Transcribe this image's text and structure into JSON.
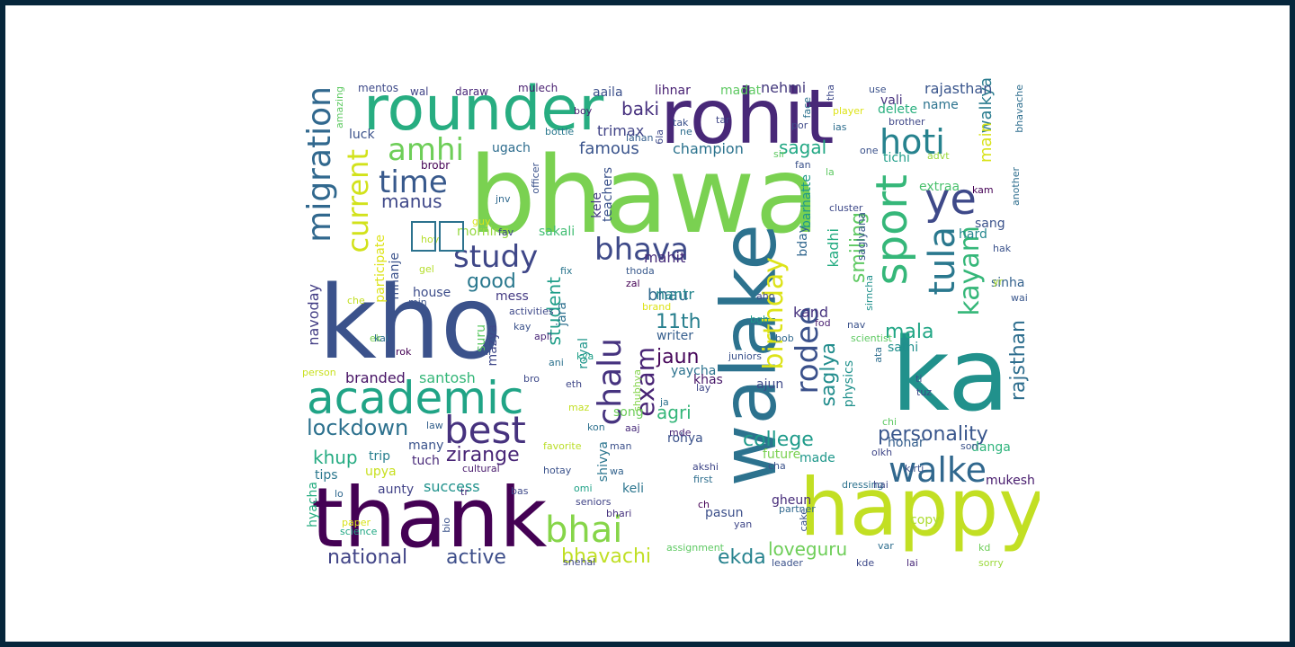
{
  "words": [
    {
      "text": "bhawa",
      "color": "#7ad151"
    },
    {
      "text": "kho",
      "color": "#3b528b"
    },
    {
      "text": "ka",
      "color": "#21918c"
    },
    {
      "text": "thank",
      "color": "#440154"
    },
    {
      "text": "happy",
      "color": "#c2df23"
    },
    {
      "text": "walake",
      "color": "#2c728e"
    },
    {
      "text": "rohit",
      "color": "#482878"
    },
    {
      "text": "rounder",
      "color": "#27ad81"
    },
    {
      "text": "academic",
      "color": "#20a486"
    },
    {
      "text": "migration",
      "color": "#31688e"
    },
    {
      "text": "sport",
      "color": "#35b779"
    },
    {
      "text": "ye",
      "color": "#3e4989"
    },
    {
      "text": "best",
      "color": "#46327e"
    },
    {
      "text": "bhai",
      "color": "#86d549"
    },
    {
      "text": "walke",
      "color": "#31688e"
    },
    {
      "text": "tula",
      "color": "#2a788e"
    },
    {
      "text": "hoti",
      "color": "#26828e"
    },
    {
      "text": "amhi",
      "color": "#6ece58"
    },
    {
      "text": "time",
      "color": "#38598c"
    },
    {
      "text": "current",
      "color": "#d2e21b"
    },
    {
      "text": "study",
      "color": "#3f4788"
    },
    {
      "text": "bhava",
      "color": "#3e4a89"
    },
    {
      "text": "chalu",
      "color": "#46337f"
    },
    {
      "text": "exam",
      "color": "#482475"
    },
    {
      "text": "birthday",
      "color": "#dde318"
    },
    {
      "text": "rodee",
      "color": "#3b518b"
    },
    {
      "text": "kayam",
      "color": "#35b779"
    },
    {
      "text": "personality",
      "color": "#39568c"
    },
    {
      "text": "lockdown",
      "color": "#2d718e"
    },
    {
      "text": "college",
      "color": "#1e9b8a"
    },
    {
      "text": "zirange",
      "color": "#482576"
    },
    {
      "text": "national",
      "color": "#414487"
    },
    {
      "text": "active",
      "color": "#3d4e8a"
    },
    {
      "text": "bhavachi",
      "color": "#c0df25"
    },
    {
      "text": "ekda",
      "color": "#26828e"
    },
    {
      "text": "loveguru",
      "color": "#6ece58"
    },
    {
      "text": "rajsthan",
      "color": "#2e6e8e"
    },
    {
      "text": "mala",
      "color": "#21a685"
    },
    {
      "text": "saglya",
      "color": "#228d8d"
    },
    {
      "text": "smiling",
      "color": "#5ec962"
    },
    {
      "text": "manus",
      "color": "#3f4889"
    },
    {
      "text": "good",
      "color": "#2a788e"
    },
    {
      "text": "student",
      "color": "#1f9e89"
    },
    {
      "text": "11th",
      "color": "#277f8e"
    },
    {
      "text": "jaun",
      "color": "#450559"
    },
    {
      "text": "agri",
      "color": "#34b679"
    },
    {
      "text": "khup",
      "color": "#25ab82"
    },
    {
      "text": "famous",
      "color": "#3a548c"
    },
    {
      "text": "champion",
      "color": "#2c738e"
    },
    {
      "text": "sagal",
      "color": "#22a884"
    },
    {
      "text": "baki",
      "color": "#46307e"
    },
    {
      "text": "trimax",
      "color": "#414487"
    },
    {
      "text": "walkya",
      "color": "#297b8e"
    },
    {
      "text": "main",
      "color": "#d8e219"
    },
    {
      "text": "bhau",
      "color": "#30698e"
    },
    {
      "text": "mahit",
      "color": "#472d7b"
    },
    {
      "text": "nantr",
      "color": "#24868e"
    },
    {
      "text": "aaila",
      "color": "#3c508b"
    },
    {
      "text": "lihnar",
      "color": "#482173"
    },
    {
      "text": "madat",
      "color": "#5ec962"
    },
    {
      "text": "nehmi",
      "color": "#44397d"
    },
    {
      "text": "rajasthan",
      "color": "#39558c"
    },
    {
      "text": "name",
      "color": "#2c738e"
    },
    {
      "text": "vali",
      "color": "#46317e"
    },
    {
      "text": "delete",
      "color": "#29af7f"
    },
    {
      "text": "tichi",
      "color": "#1f9e89"
    },
    {
      "text": "extraa",
      "color": "#4ac16d"
    },
    {
      "text": "sang",
      "color": "#3b528b"
    },
    {
      "text": "hard",
      "color": "#24878e"
    },
    {
      "text": "sinha",
      "color": "#34618d"
    },
    {
      "text": "sathi",
      "color": "#218f8d"
    },
    {
      "text": "honar",
      "color": "#355f8d"
    },
    {
      "text": "danga",
      "color": "#2fb47c"
    },
    {
      "text": "mukesh",
      "color": "#481c6e"
    },
    {
      "text": "copy",
      "color": "#addc30"
    },
    {
      "text": "future",
      "color": "#7ad151"
    },
    {
      "text": "made",
      "color": "#1f988b"
    },
    {
      "text": "gheun",
      "color": "#472c7a"
    },
    {
      "text": "pasun",
      "color": "#3c4f8a"
    },
    {
      "text": "keli",
      "color": "#2b758e"
    },
    {
      "text": "success",
      "color": "#20928c"
    },
    {
      "text": "aunty",
      "color": "#414287"
    },
    {
      "text": "tuch",
      "color": "#482979"
    },
    {
      "text": "trip",
      "color": "#277e8e"
    },
    {
      "text": "upya",
      "color": "#c8e020"
    },
    {
      "text": "tips",
      "color": "#2a778e"
    },
    {
      "text": "many",
      "color": "#3a538b"
    },
    {
      "text": "branded",
      "color": "#471365"
    },
    {
      "text": "santosh",
      "color": "#35b779"
    },
    {
      "text": "navoday",
      "color": "#433e85"
    },
    {
      "text": "house",
      "color": "#3d4d8a"
    },
    {
      "text": "mess",
      "color": "#443a83"
    },
    {
      "text": "morning",
      "color": "#95d840"
    },
    {
      "text": "ugach",
      "color": "#2e6d8e"
    },
    {
      "text": "sakali",
      "color": "#40bd72"
    },
    {
      "text": "luck",
      "color": "#3b528b"
    },
    {
      "text": "brobr",
      "color": "#440154"
    },
    {
      "text": "writer",
      "color": "#355e8d"
    },
    {
      "text": "yaycha",
      "color": "#2c728e"
    },
    {
      "text": "khas",
      "color": "#481769"
    },
    {
      "text": "ajun",
      "color": "#3e4989"
    },
    {
      "text": "rohya",
      "color": "#3b528b"
    },
    {
      "text": "song",
      "color": "#6ccd5a"
    },
    {
      "text": "bday",
      "color": "#31678e"
    },
    {
      "text": "barhatte",
      "color": "#1f9a8a"
    },
    {
      "text": "kadhi",
      "color": "#25ac82"
    },
    {
      "text": "kand",
      "color": "#46327e"
    },
    {
      "text": "physics",
      "color": "#21918c"
    },
    {
      "text": "saglyana",
      "color": "#39568c"
    },
    {
      "text": "hyacha",
      "color": "#26ad81"
    },
    {
      "text": "mhanje",
      "color": "#3b528b"
    },
    {
      "text": "participate",
      "color": "#dde318"
    },
    {
      "text": "royal",
      "color": "#1f958b"
    },
    {
      "text": "jara",
      "color": "#2d708e"
    },
    {
      "text": "mazya",
      "color": "#3f4889"
    },
    {
      "text": "suru",
      "color": "#5cc863"
    },
    {
      "text": "shivya",
      "color": "#2b758e"
    },
    {
      "text": "kele",
      "color": "#443b84"
    },
    {
      "text": "teachers",
      "color": "#3b528b"
    },
    {
      "text": "mentos",
      "color": "#3e4a89"
    },
    {
      "text": "wal",
      "color": "#414487"
    },
    {
      "text": "daraw",
      "color": "#482677"
    },
    {
      "text": "mulech",
      "color": "#481f70"
    },
    {
      "text": "amazing",
      "color": "#5ec962"
    },
    {
      "text": "boy",
      "color": "#481f70"
    },
    {
      "text": "lahan",
      "color": "#355f8d"
    },
    {
      "text": "bottle",
      "color": "#2a788e"
    },
    {
      "text": "officer",
      "color": "#3b528b"
    },
    {
      "text": "jnv",
      "color": "#30698e"
    },
    {
      "text": "guy",
      "color": "#d5e21a"
    },
    {
      "text": "fav",
      "color": "#3f4788"
    },
    {
      "text": "fix",
      "color": "#2a768e"
    },
    {
      "text": "thoda",
      "color": "#38598c"
    },
    {
      "text": "zal",
      "color": "#440154"
    },
    {
      "text": "brand",
      "color": "#dde318"
    },
    {
      "text": "apli",
      "color": "#482576"
    },
    {
      "text": "ani",
      "color": "#2c728e"
    },
    {
      "text": "kya",
      "color": "#1fa088"
    },
    {
      "text": "shubhya",
      "color": "#84d44b"
    },
    {
      "text": "eth",
      "color": "#3f4788"
    },
    {
      "text": "maz",
      "color": "#c2df23"
    },
    {
      "text": "law",
      "color": "#34618d"
    },
    {
      "text": "kon",
      "color": "#2d708e"
    },
    {
      "text": "aaj",
      "color": "#472a7a"
    },
    {
      "text": "man",
      "color": "#3c508b"
    },
    {
      "text": "wa",
      "color": "#33638d"
    },
    {
      "text": "omi",
      "color": "#1fa287"
    },
    {
      "text": "seniors",
      "color": "#414487"
    },
    {
      "text": "bhari",
      "color": "#46327e"
    },
    {
      "text": "favorite",
      "color": "#bade28"
    },
    {
      "text": "hotay",
      "color": "#3b528b"
    },
    {
      "text": "cultural",
      "color": "#481a6c"
    },
    {
      "text": "bas",
      "color": "#3e4989"
    },
    {
      "text": "tr",
      "color": "#482979"
    },
    {
      "text": "bio",
      "color": "#3b528b"
    },
    {
      "text": "lo",
      "color": "#31688e"
    },
    {
      "text": "paper",
      "color": "#d8e219"
    },
    {
      "text": "science",
      "color": "#22a884"
    },
    {
      "text": "snehal",
      "color": "#3f4788"
    },
    {
      "text": "assignment",
      "color": "#5ec962"
    },
    {
      "text": "leader",
      "color": "#3b528b"
    },
    {
      "text": "kde",
      "color": "#3e4989"
    },
    {
      "text": "lai",
      "color": "#482878"
    },
    {
      "text": "sorry",
      "color": "#9bd93c"
    },
    {
      "text": "kd",
      "color": "#6ece58"
    },
    {
      "text": "var",
      "color": "#2e6e8e"
    },
    {
      "text": "yan",
      "color": "#3f4788"
    },
    {
      "text": "ch",
      "color": "#440154"
    },
    {
      "text": "cake",
      "color": "#3b528b"
    },
    {
      "text": "partner",
      "color": "#31688e"
    },
    {
      "text": "first",
      "color": "#2e6e8e"
    },
    {
      "text": "akshi",
      "color": "#3f4788"
    },
    {
      "text": "cha",
      "color": "#3b528b"
    },
    {
      "text": "mde",
      "color": "#482575"
    },
    {
      "text": "ja",
      "color": "#2c728e"
    },
    {
      "text": "lay",
      "color": "#3f4788"
    },
    {
      "text": "juniors",
      "color": "#3b528b"
    },
    {
      "text": "bob",
      "color": "#31688e"
    },
    {
      "text": "bgh",
      "color": "#1f988b"
    },
    {
      "text": "aho",
      "color": "#3e4989"
    },
    {
      "text": "fod",
      "color": "#481f70"
    },
    {
      "text": "nav",
      "color": "#3b528b"
    },
    {
      "text": "scientist",
      "color": "#5ec962"
    },
    {
      "text": "sirncha",
      "color": "#21918c"
    },
    {
      "text": "ata",
      "color": "#2e6e8e"
    },
    {
      "text": "ti",
      "color": "#3b528b"
    },
    {
      "text": "tuz",
      "color": "#3e4989"
    },
    {
      "text": "chi",
      "color": "#5ec962"
    },
    {
      "text": "olkh",
      "color": "#3f4788"
    },
    {
      "text": "kirti",
      "color": "#3b528b"
    },
    {
      "text": "dressing",
      "color": "#2c728e"
    },
    {
      "text": "hai",
      "color": "#3e4989"
    },
    {
      "text": "son",
      "color": "#3b528b"
    },
    {
      "text": "wai",
      "color": "#39568c"
    },
    {
      "text": "yr",
      "color": "#addc30"
    },
    {
      "text": "hak",
      "color": "#3b528b"
    },
    {
      "text": "kam",
      "color": "#440154"
    },
    {
      "text": "cluster",
      "color": "#3e4989"
    },
    {
      "text": "la",
      "color": "#5ec962"
    },
    {
      "text": "advt",
      "color": "#9bd93c"
    },
    {
      "text": "another",
      "color": "#2e6e8e"
    },
    {
      "text": "bhavache",
      "color": "#2e6e8e"
    },
    {
      "text": "use",
      "color": "#3b528b"
    },
    {
      "text": "brother",
      "color": "#3f4788"
    },
    {
      "text": "player",
      "color": "#dde318"
    },
    {
      "text": "ias",
      "color": "#2e6e8e"
    },
    {
      "text": "one",
      "color": "#3b528b"
    },
    {
      "text": "tha",
      "color": "#3e4989"
    },
    {
      "text": "face",
      "color": "#2c728e"
    },
    {
      "text": "por",
      "color": "#3e4989"
    },
    {
      "text": "tar",
      "color": "#3f4788"
    },
    {
      "text": "tak",
      "color": "#3b528b"
    },
    {
      "text": "ne",
      "color": "#2e6e8e"
    },
    {
      "text": "6la",
      "color": "#3e4989"
    },
    {
      "text": "sir",
      "color": "#5ec962"
    },
    {
      "text": "fan",
      "color": "#3b528b"
    },
    {
      "text": "che",
      "color": "#c2df23"
    },
    {
      "text": "min",
      "color": "#3b528b"
    },
    {
      "text": "activities",
      "color": "#3e4989"
    },
    {
      "text": "kay",
      "color": "#3b528b"
    },
    {
      "text": "ek",
      "color": "#7ad151"
    },
    {
      "text": "kai",
      "color": "#2e6e8e"
    },
    {
      "text": "rok",
      "color": "#440154"
    },
    {
      "text": "hi",
      "color": "#3b528b"
    },
    {
      "text": "person",
      "color": "#c8e020"
    },
    {
      "text": "bro",
      "color": "#3e4989"
    },
    {
      "text": "hoy",
      "color": "#b5de2b"
    },
    {
      "text": "gel",
      "color": "#b5de2b"
    }
  ]
}
